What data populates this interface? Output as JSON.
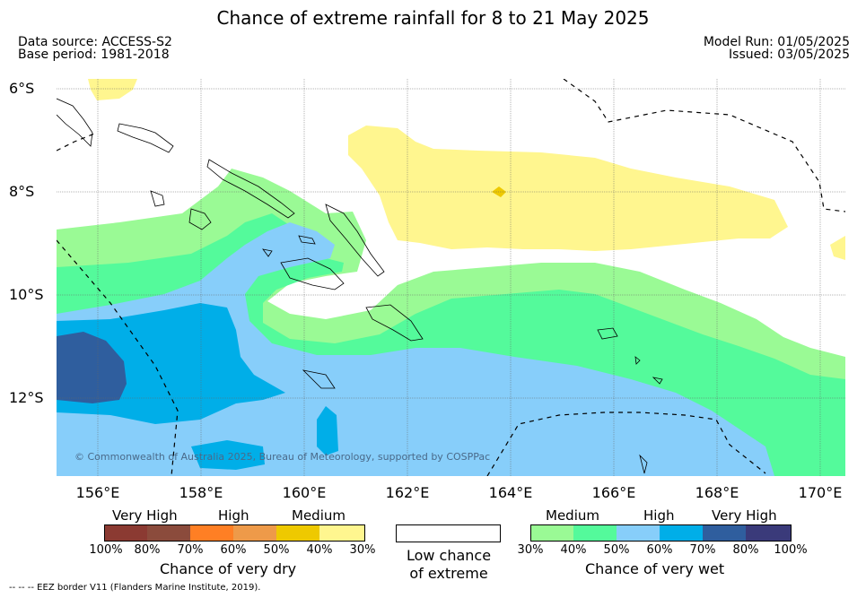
{
  "header": {
    "title": "Chance of extreme rainfall for 8 to 21 May 2025",
    "data_source": "Data source: ACCESS-S2",
    "base_period": "Base period: 1981-2018",
    "model_run": "Model Run: 01/05/2025",
    "issued": "Issued: 03/05/2025"
  },
  "map": {
    "lat_labels": [
      "6°S",
      "8°S",
      "10°S",
      "12°S"
    ],
    "lon_labels": [
      "156°E",
      "158°E",
      "160°E",
      "162°E",
      "164°E",
      "166°E",
      "168°E",
      "170°E"
    ],
    "copyright": "© Commonwealth of Australia 2025, Bureau of Meteorology, supported by COSPPac",
    "colors": {
      "dry_medium": "#fff68f",
      "dry_high_40": "#eec900",
      "wet_medium_30": "#9afa95",
      "wet_medium_40": "#54fa9b",
      "wet_high_50": "#87cefa",
      "wet_high_60": "#00aee8",
      "wet_very_high_70": "#2f5e9e"
    }
  },
  "legend": {
    "dry": {
      "categories": [
        "Very High",
        "High",
        "Medium"
      ],
      "ticks": [
        "100%",
        "80%",
        "70%",
        "60%",
        "50%",
        "40%",
        "30%"
      ],
      "colors": [
        "#8b3a32",
        "#8b4b3c",
        "#ff7f24",
        "#ee9a49",
        "#eec900",
        "#fff68f"
      ],
      "caption": "Chance of very dry"
    },
    "low": {
      "caption_line1": "Low chance",
      "caption_line2": "of extreme"
    },
    "wet": {
      "categories": [
        "Medium",
        "High",
        "Very High"
      ],
      "ticks": [
        "30%",
        "40%",
        "50%",
        "60%",
        "70%",
        "80%",
        "100%"
      ],
      "colors": [
        "#9afa95",
        "#54fa9b",
        "#87cefa",
        "#00aee8",
        "#2f5e9e",
        "#3a3a7a"
      ],
      "caption": "Chance of very wet"
    }
  },
  "footer": {
    "eez_note": "--  --  -- EEZ border V11 (Flanders Marine Institute, 2019)."
  }
}
